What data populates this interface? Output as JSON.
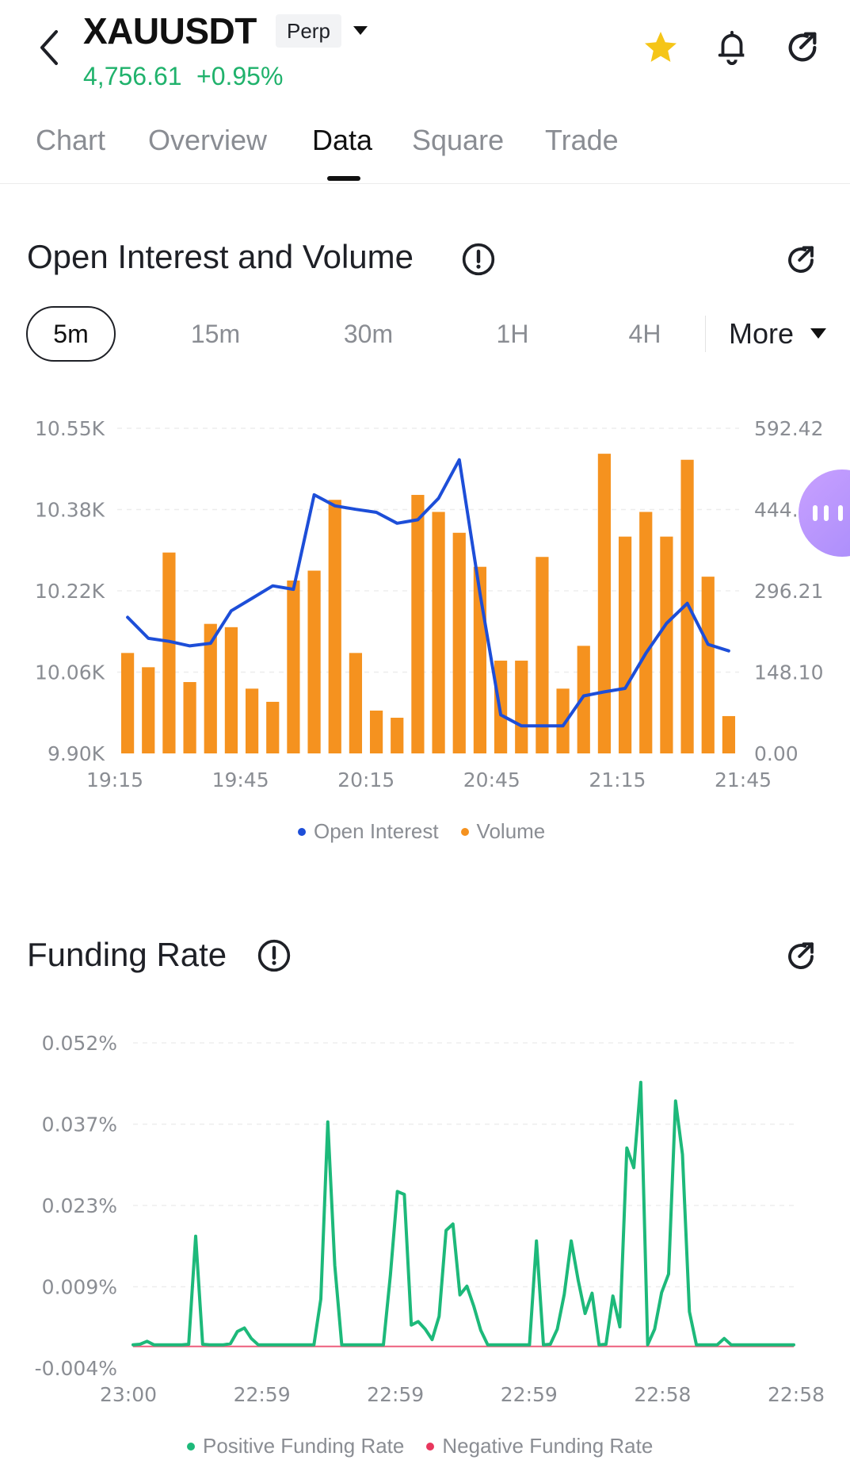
{
  "header": {
    "symbol": "XAUUSDT",
    "contract_type": "Perp",
    "last_price": "4,756.61",
    "change_pct": "+0.95%",
    "favorite_color": "#f5c518",
    "price_color": "#20b26c",
    "icons": [
      "back-icon",
      "caret-down-icon",
      "star-icon",
      "bell-icon",
      "share-icon"
    ]
  },
  "tabs": [
    {
      "label": "Chart",
      "active": false
    },
    {
      "label": "Overview",
      "active": false
    },
    {
      "label": "Data",
      "active": true
    },
    {
      "label": "Square",
      "active": false
    },
    {
      "label": "Trade",
      "active": false
    }
  ],
  "open_interest_section": {
    "title": "Open Interest and Volume",
    "intervals": [
      {
        "label": "5m",
        "active": true
      },
      {
        "label": "15m",
        "active": false
      },
      {
        "label": "30m",
        "active": false
      },
      {
        "label": "1H",
        "active": false
      },
      {
        "label": "4H",
        "active": false
      }
    ],
    "more_label": "More"
  },
  "funding_section": {
    "title": "Funding Rate"
  },
  "colors": {
    "open_interest": "#1d4ed8",
    "volume": "#f5921f",
    "positive_funding": "#1db97a",
    "negative_funding": "#e8365d"
  },
  "chart_data": [
    {
      "type": "bar",
      "left_axis_ticks": [
        "10.55K",
        "10.38K",
        "10.22K",
        "10.06K",
        "9.90K"
      ],
      "right_axis_ticks": [
        "592.42",
        "444.31",
        "296.21",
        "148.10",
        "0.00"
      ],
      "x_ticks": [
        "19:15",
        "19:45",
        "20:15",
        "20:45",
        "21:15",
        "21:45"
      ],
      "legend": [
        "Open Interest",
        "Volume"
      ],
      "left_ylim": [
        9900,
        10550
      ],
      "right_ylim": [
        0,
        592.42
      ],
      "grid": true,
      "legend_position": "bottom-center",
      "series": [
        {
          "name": "Volume",
          "kind": "bar",
          "axis": "right",
          "values": [
            183,
            157,
            366,
            130,
            236,
            230,
            118,
            94,
            315,
            333,
            462,
            183,
            78,
            65,
            471,
            440,
            402,
            340,
            169,
            169,
            358,
            118,
            196,
            546,
            395,
            440,
            395,
            535,
            322,
            68
          ]
        },
        {
          "name": "Open Interest",
          "kind": "line",
          "axis": "left",
          "values": [
            10172,
            10130,
            10124,
            10115,
            10120,
            10185,
            10210,
            10235,
            10228,
            10417,
            10395,
            10388,
            10382,
            10360,
            10367,
            10410,
            10487,
            10220,
            9977,
            9955,
            9955,
            9955,
            10015,
            10023,
            10030,
            10100,
            10160,
            10200,
            10118,
            10105
          ]
        }
      ]
    },
    {
      "type": "line",
      "y_ticks": [
        "0.052%",
        "0.037%",
        "0.023%",
        "0.009%",
        "-0.004%"
      ],
      "x_ticks": [
        "23:00",
        "22:59",
        "22:59",
        "22:59",
        "22:58",
        "22:58"
      ],
      "legend": [
        "Positive Funding Rate",
        "Negative Funding Rate"
      ],
      "ylim": [
        -0.004,
        0.052
      ],
      "grid": true,
      "legend_position": "bottom-center",
      "series": [
        {
          "name": "Positive Funding Rate",
          "values": [
            0,
            0.0001,
            0.0006,
            0,
            0,
            0,
            0,
            0,
            0.0001,
            0.0187,
            0.0001,
            0,
            0,
            0,
            0.0002,
            0.0023,
            0.0029,
            0.0011,
            0,
            0,
            0,
            0,
            0,
            0,
            0,
            0,
            0,
            0.0079,
            0.0384,
            0.0137,
            0,
            0,
            0,
            0,
            0,
            0,
            0,
            0.012,
            0.0264,
            0.0259,
            0.0034,
            0.004,
            0.0027,
            0.0009,
            0.0049,
            0.0197,
            0.0208,
            0.0086,
            0.0101,
            0.0066,
            0.0025,
            0,
            0,
            0,
            0,
            0,
            0,
            0,
            0.0179,
            0,
            0.0001,
            0.0027,
            0.0087,
            0.0179,
            0.0111,
            0.0054,
            0.0089,
            0,
            0.0001,
            0.0084,
            0.0031,
            0.0339,
            0.0305,
            0.0452,
            0,
            0.0027,
            0.009,
            0.0122,
            0.042,
            0.0328,
            0.0057,
            0,
            0,
            0,
            0,
            0.0011,
            0,
            0,
            0,
            0,
            0,
            0,
            0,
            0,
            0,
            0
          ]
        },
        {
          "name": "Negative Funding Rate",
          "values": []
        }
      ]
    }
  ]
}
